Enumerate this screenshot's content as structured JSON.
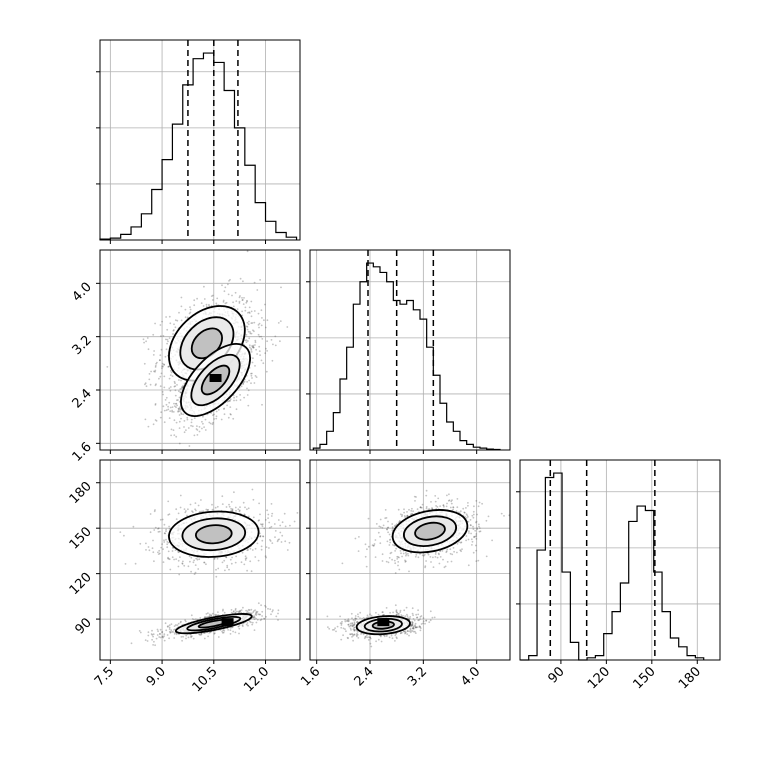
{
  "chart_data": {
    "type": "corner",
    "title": "",
    "grid": true,
    "colors": {
      "hist": "#000000",
      "scatter": "#555555",
      "contour_fill": "#808080",
      "density_peak": "#000000",
      "grid": "#b0b0b0"
    },
    "parameters": [
      {
        "name": "",
        "range": [
          7.2,
          13.0
        ],
        "ticks": [
          "7.5",
          "9.0",
          "10.5",
          "12.0"
        ]
      },
      {
        "name": "",
        "range": [
          1.5,
          4.5
        ],
        "ticks": [
          "1.6",
          "2.4",
          "3.2",
          "4.0"
        ]
      },
      {
        "name": "",
        "range": [
          63,
          195
        ],
        "ticks": [
          "90",
          "120",
          "150",
          "180"
        ]
      }
    ],
    "quantiles": [
      [
        9.75,
        10.5,
        11.2
      ],
      [
        2.37,
        2.8,
        3.35
      ],
      [
        83,
        107,
        152
      ]
    ],
    "histograms": [
      {
        "bins": [
          7.35,
          7.65,
          7.95,
          8.25,
          8.55,
          8.85,
          9.15,
          9.45,
          9.75,
          10.05,
          10.35,
          10.65,
          10.95,
          11.25,
          11.55,
          11.85,
          12.15,
          12.45,
          12.75
        ],
        "counts": [
          0.5,
          1,
          3,
          7,
          14,
          27,
          43,
          62,
          83,
          97,
          100,
          95,
          80,
          60,
          40,
          20,
          10,
          4,
          1.5
        ]
      },
      {
        "bins": [
          1.6,
          1.7,
          1.8,
          1.9,
          2.0,
          2.1,
          2.2,
          2.3,
          2.4,
          2.5,
          2.6,
          2.7,
          2.8,
          2.9,
          3.0,
          3.1,
          3.2,
          3.3,
          3.4,
          3.5,
          3.6,
          3.7,
          3.8,
          3.9,
          4.0,
          4.1,
          4.2,
          4.3
        ],
        "counts": [
          1,
          3,
          10,
          20,
          38,
          55,
          78,
          90,
          100,
          98,
          95,
          90,
          80,
          78,
          80,
          75,
          70,
          55,
          40,
          25,
          15,
          10,
          5,
          3,
          1.5,
          1,
          0.5,
          0.3
        ]
      },
      {
        "bins": [
          66,
          71.5,
          77,
          82.5,
          88,
          93.5,
          99,
          104.5,
          110,
          115.5,
          121,
          126.5,
          132,
          137.5,
          143,
          148.5,
          154,
          159.5,
          165,
          170.5,
          176,
          181.5
        ],
        "counts": [
          0,
          2,
          50,
          83,
          85,
          40,
          8,
          0,
          1,
          2,
          12,
          22,
          35,
          63,
          70,
          68,
          40,
          22,
          10,
          6,
          2,
          1
        ]
      }
    ],
    "pairs": [
      {
        "x_param": 0,
        "y_param": 1,
        "clusters": [
          {
            "center": [
              10.3,
              3.1
            ],
            "sx": 0.55,
            "sy": 0.28,
            "corr": 0.35
          },
          {
            "center": [
              10.55,
              2.55
            ],
            "sx": 0.5,
            "sy": 0.27,
            "corr": 0.6
          }
        ],
        "peak": [
          10.55,
          2.58
        ]
      },
      {
        "x_param": 0,
        "y_param": 2,
        "clusters": [
          {
            "center": [
              10.5,
              146
            ],
            "sx": 0.65,
            "sy": 7.5,
            "corr": 0.1
          },
          {
            "center": [
              10.5,
              87
            ],
            "sx": 0.55,
            "sy": 3.2,
            "corr": 0.75
          }
        ],
        "peak": [
          10.9,
          88
        ]
      },
      {
        "x_param": 1,
        "y_param": 2,
        "clusters": [
          {
            "center": [
              3.3,
              148
            ],
            "sx": 0.28,
            "sy": 7.0,
            "corr": 0.25
          },
          {
            "center": [
              2.6,
              86
            ],
            "sx": 0.2,
            "sy": 3.0,
            "corr": 0.2
          }
        ],
        "peak": [
          2.6,
          88
        ]
      }
    ]
  }
}
